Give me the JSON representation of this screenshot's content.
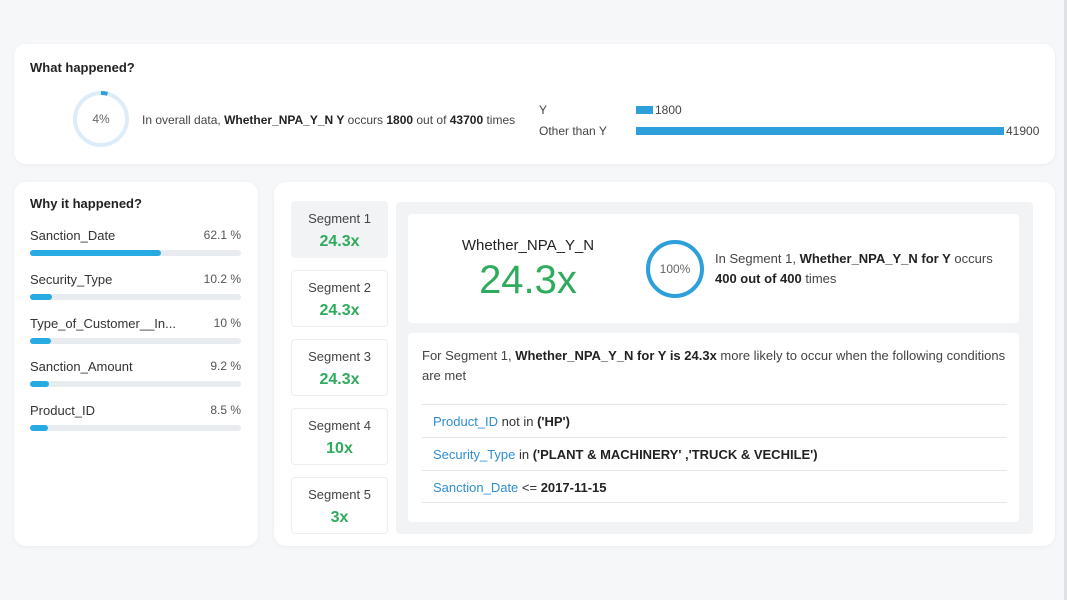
{
  "what": {
    "title": "What happened?",
    "ring_label": "4%",
    "ring_fraction": 0.04,
    "sentence": {
      "prefix": "In overall data, ",
      "metric": "Whether_NPA_Y_N Y",
      "mid1": " occurs ",
      "count": "1800",
      "mid2": " out of ",
      "total": "43700",
      "suffix": " times"
    },
    "distribution": [
      {
        "label": "Y",
        "value": 1800,
        "value_label": "1800"
      },
      {
        "label": "Other than Y",
        "value": 41900,
        "value_label": "41900"
      }
    ]
  },
  "why": {
    "title": "Why it happened?",
    "drivers": [
      {
        "name": "Sanction_Date",
        "pct_label": "62.1 %",
        "pct": 62.1
      },
      {
        "name": "Security_Type",
        "pct_label": "10.2 %",
        "pct": 10.2
      },
      {
        "name": "Type_of_Customer__In...",
        "pct_label": "10 %",
        "pct": 10
      },
      {
        "name": "Sanction_Amount",
        "pct_label": "9.2 %",
        "pct": 9.2
      },
      {
        "name": "Product_ID",
        "pct_label": "8.5 %",
        "pct": 8.5
      }
    ]
  },
  "segments": [
    {
      "name": "Segment 1",
      "value": "24.3x"
    },
    {
      "name": "Segment 2",
      "value": "24.3x"
    },
    {
      "name": "Segment 3",
      "value": "24.3x"
    },
    {
      "name": "Segment 4",
      "value": "10x"
    },
    {
      "name": "Segment 5",
      "value": "3x"
    }
  ],
  "detail": {
    "metric_name": "Whether_NPA_Y_N",
    "metric_value": "24.3x",
    "ring_label": "100%",
    "ring_fraction": 1.0,
    "sentence": {
      "prefix": "In Segment 1, ",
      "metric": "Whether_NPA_Y_N for Y",
      "mid": " occurs ",
      "count_text": "400 out of 400",
      "suffix": " times"
    },
    "intro": {
      "prefix": "For Segment 1, ",
      "bold": "Whether_NPA_Y_N for Y is 24.3x",
      "suffix": " more likely to occur when the following conditions are met"
    },
    "conditions": [
      {
        "field": "Product_ID",
        "op": " not in ",
        "value": "('HP')"
      },
      {
        "field": "Security_Type",
        "op": " in ",
        "value": "('PLANT & MACHINERY' ,'TRUCK & VECHILE')"
      },
      {
        "field": "Sanction_Date",
        "op": " <= ",
        "value": "2017-11-15"
      }
    ]
  },
  "colors": {
    "accent_blue": "#2d9fdb",
    "driver_blue": "#27a9e1",
    "positive_green": "#2eab5c",
    "ring_track": "#dcecf8"
  }
}
